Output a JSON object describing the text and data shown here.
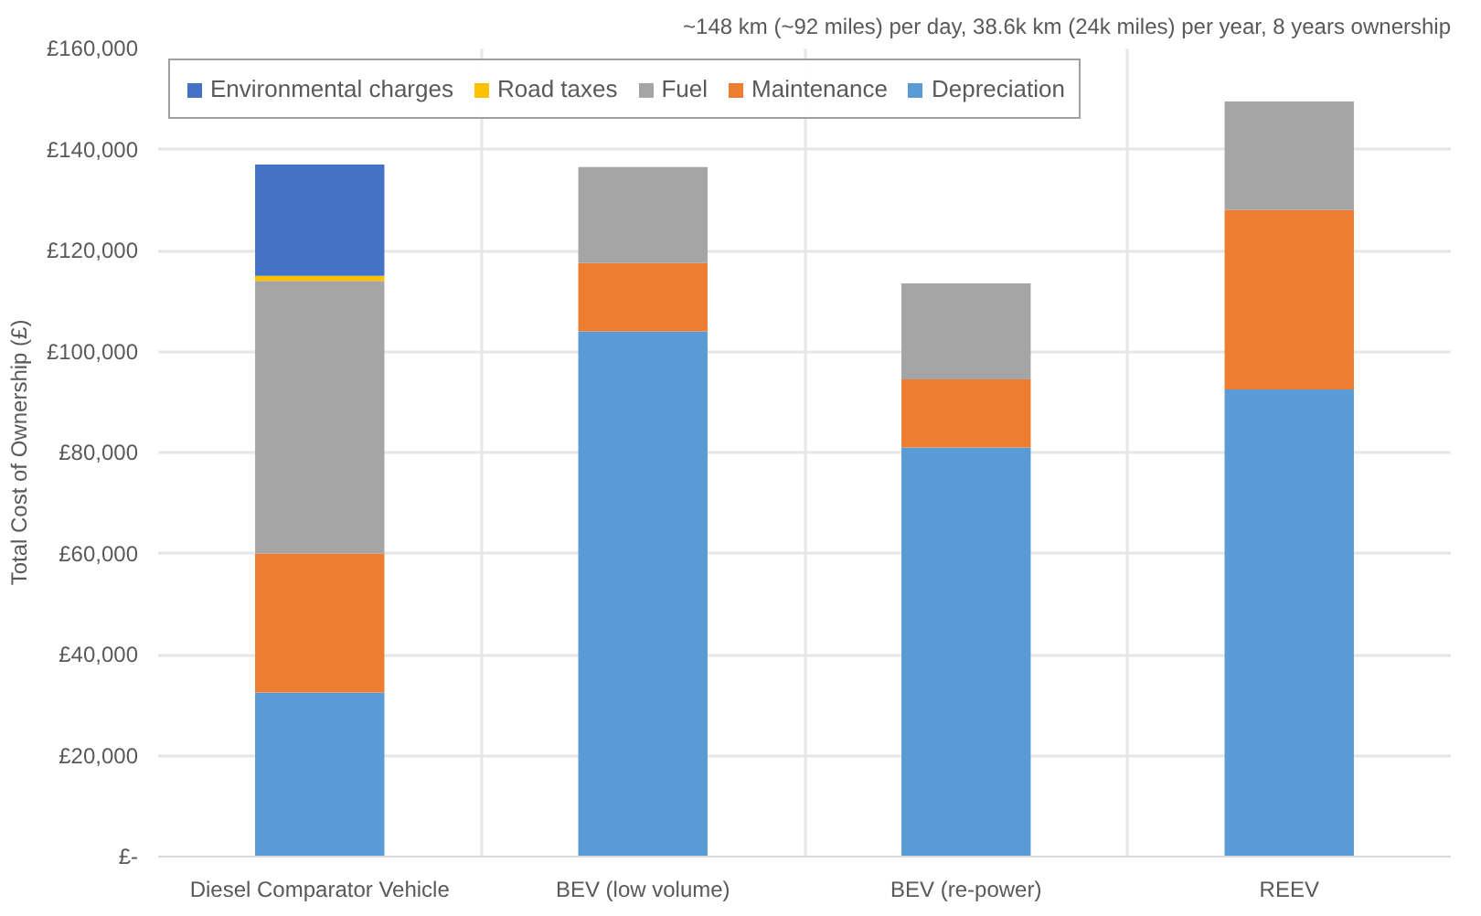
{
  "chart_data": {
    "type": "bar",
    "stacked": true,
    "title": "~148 km (~92 miles) per day, 38.6k km (24k miles) per year, 8 years ownership",
    "ylabel": "Total Cost of Ownership (£)",
    "categories": [
      "Diesel Comparator Vehicle",
      "BEV (low volume)",
      "BEV (re-power)",
      "REEV"
    ],
    "series": [
      {
        "name": "Depreciation",
        "color": "#5b9bd5",
        "values": [
          32500,
          104000,
          81000,
          92500
        ]
      },
      {
        "name": "Maintenance",
        "color": "#ed7d31",
        "values": [
          27500,
          13500,
          13500,
          35500
        ]
      },
      {
        "name": "Fuel",
        "color": "#a5a5a5",
        "values": [
          54000,
          19000,
          19000,
          21500
        ]
      },
      {
        "name": "Road taxes",
        "color": "#ffc000",
        "values": [
          1000,
          null,
          null,
          null
        ]
      },
      {
        "name": "Environmental charges",
        "color": "#4472c4",
        "values": [
          22000,
          null,
          null,
          null
        ]
      }
    ],
    "ylim": [
      0,
      160000
    ],
    "yticks": [
      {
        "value": 0,
        "label": "£-"
      },
      {
        "value": 20000,
        "label": "£20,000"
      },
      {
        "value": 40000,
        "label": "£40,000"
      },
      {
        "value": 60000,
        "label": "£60,000"
      },
      {
        "value": 80000,
        "label": "£80,000"
      },
      {
        "value": 100000,
        "label": "£100,000"
      },
      {
        "value": 120000,
        "label": "£120,000"
      },
      {
        "value": 140000,
        "label": "£140,000"
      },
      {
        "value": 160000,
        "label": "£160,000"
      }
    ],
    "grid": true,
    "legend": "top left"
  }
}
